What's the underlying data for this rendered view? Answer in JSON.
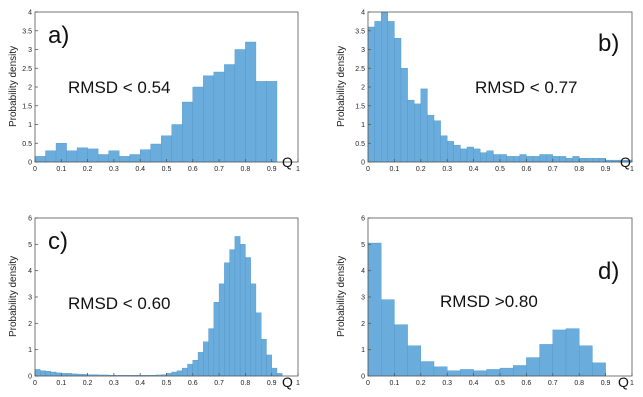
{
  "chart_data": [
    {
      "type": "bar",
      "panel_label": "a)",
      "annotation": "RMSD < 0.54",
      "ylabel": "Probability density",
      "xlabel": "Q",
      "xlim": [
        0,
        1
      ],
      "ylim": [
        0,
        4
      ],
      "xticks": [
        "0",
        "0.1",
        "0.2",
        "0.3",
        "0.4",
        "0.5",
        "0.6",
        "0.7",
        "0.8",
        "0.9",
        "1"
      ],
      "yticks": [
        "0",
        "0.5",
        "1",
        "1.5",
        "2",
        "2.5",
        "3",
        "3.5",
        "4"
      ],
      "bin_start": 0,
      "bin_width": 0.04,
      "values": [
        0.15,
        0.3,
        0.5,
        0.3,
        0.38,
        0.35,
        0.2,
        0.3,
        0.15,
        0.2,
        0.33,
        0.48,
        0.7,
        1.0,
        1.6,
        2.0,
        2.3,
        2.4,
        2.6,
        3.0,
        3.2,
        2.15,
        2.15
      ]
    },
    {
      "type": "bar",
      "panel_label": "b)",
      "annotation": "RMSD < 0.77",
      "ylabel": "Probability density",
      "xlabel": "Q",
      "xlim": [
        0,
        1
      ],
      "ylim": [
        0,
        4
      ],
      "xticks": [
        "0",
        "0.1",
        "0.2",
        "0.3",
        "0.4",
        "0.5",
        "0.6",
        "0.7",
        "0.8",
        "0.9",
        "1"
      ],
      "yticks": [
        "0",
        "0.5",
        "1",
        "1.5",
        "2",
        "2.5",
        "3",
        "3.5",
        "4"
      ],
      "bin_start": 0,
      "bin_width": 0.025,
      "values": [
        3.6,
        3.75,
        4.0,
        3.75,
        3.3,
        2.5,
        1.65,
        1.55,
        1.95,
        1.25,
        1.1,
        0.7,
        0.55,
        0.45,
        0.35,
        0.4,
        0.35,
        0.25,
        0.3,
        0.2,
        0.2,
        0.15,
        0.15,
        0.2,
        0.15,
        0.15,
        0.2,
        0.2,
        0.15,
        0.15,
        0.1,
        0.15,
        0.1,
        0.1,
        0.1,
        0.1,
        0.05,
        0.05,
        0.05,
        0.05
      ]
    },
    {
      "type": "bar",
      "panel_label": "c)",
      "annotation": "RMSD < 0.60",
      "ylabel": "Probability density",
      "xlabel": "Q",
      "xlim": [
        0,
        1
      ],
      "ylim": [
        0,
        6
      ],
      "xticks": [
        "0",
        "0.1",
        "0.2",
        "0.3",
        "0.4",
        "0.5",
        "0.6",
        "0.7",
        "0.8",
        "0.9",
        "1"
      ],
      "yticks": [
        "0",
        "1",
        "2",
        "3",
        "4",
        "5",
        "6"
      ],
      "bin_start": 0,
      "bin_width": 0.02,
      "values": [
        0.25,
        0.2,
        0.18,
        0.15,
        0.12,
        0.1,
        0.1,
        0.08,
        0.07,
        0.06,
        0.05,
        0.05,
        0.04,
        0.04,
        0.03,
        0.03,
        0.03,
        0.03,
        0.03,
        0.03,
        0.03,
        0.03,
        0.03,
        0.04,
        0.05,
        0.1,
        0.15,
        0.2,
        0.3,
        0.45,
        0.6,
        0.9,
        1.3,
        1.8,
        2.8,
        3.5,
        4.3,
        4.8,
        5.3,
        5.0,
        4.5,
        3.5,
        2.4,
        1.4,
        0.8,
        0.3,
        0.1
      ]
    },
    {
      "type": "bar",
      "panel_label": "d)",
      "annotation": "RMSD >0.80",
      "ylabel": "Probability density",
      "xlabel": "Q",
      "xlim": [
        0,
        1
      ],
      "ylim": [
        0,
        6
      ],
      "xticks": [
        "0",
        "0.1",
        "0.2",
        "0.3",
        "0.4",
        "0.5",
        "0.6",
        "0.7",
        "0.8",
        "0.9",
        "1"
      ],
      "yticks": [
        "0",
        "1",
        "2",
        "3",
        "4",
        "5",
        "6"
      ],
      "bin_start": 0,
      "bin_width": 0.05,
      "values": [
        5.05,
        2.9,
        1.95,
        1.15,
        0.55,
        0.35,
        0.2,
        0.25,
        0.2,
        0.25,
        0.3,
        0.4,
        0.7,
        1.2,
        1.75,
        1.8,
        1.15,
        0.5
      ]
    }
  ],
  "style": {
    "bar_color": "#6aaddc",
    "bar_edge": "#4f95c8",
    "axis_color": "#555555"
  }
}
